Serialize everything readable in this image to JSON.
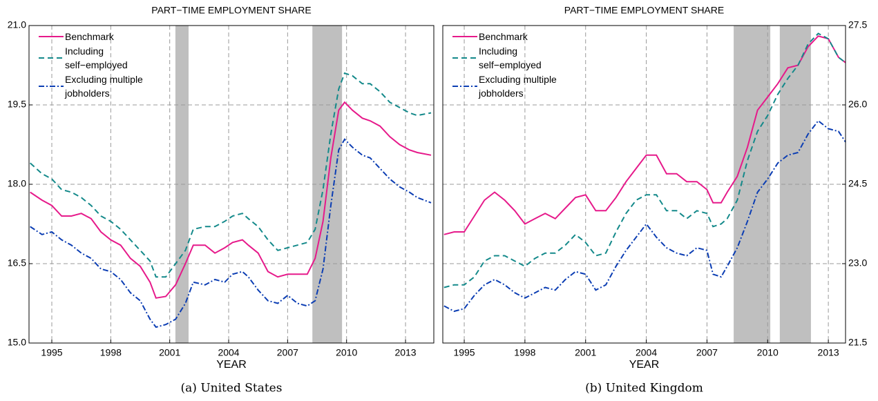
{
  "chart_data": [
    {
      "type": "line",
      "title": "PART−TIME EMPLOYMENT SHARE",
      "xlabel": "YEAR",
      "caption": "(a) United States",
      "y_axis_side": "left",
      "grid": true,
      "xlim": [
        1993.84,
        2014.44
      ],
      "xticks": [
        1995,
        1998,
        2001,
        2004,
        2007,
        2010,
        2013
      ],
      "ylim": [
        15,
        21
      ],
      "yticks": [
        {
          "value": 15,
          "label": "15.0"
        },
        16.5,
        {
          "value": 18,
          "label": "18.0"
        },
        19.5,
        {
          "value": 21,
          "label": "21.0"
        }
      ],
      "shaded_regions": [
        [
          2001.29,
          2001.96
        ],
        [
          2008.26,
          2009.77
        ]
      ],
      "shade_color": "#bfbfbf",
      "x": [
        1993.9,
        1994.5,
        1995,
        1995.5,
        1996,
        1996.5,
        1997,
        1997.5,
        1998,
        1998.5,
        1999,
        1999.5,
        2000,
        2000.3,
        2000.8,
        2001.3,
        2001.8,
        2002.2,
        2002.8,
        2003.3,
        2003.8,
        2004.2,
        2004.7,
        2005,
        2005.5,
        2006,
        2006.5,
        2007,
        2007.5,
        2008,
        2008.4,
        2008.8,
        2009.2,
        2009.6,
        2009.9,
        2010.3,
        2010.8,
        2011.2,
        2011.7,
        2012.2,
        2012.7,
        2013.2,
        2013.6,
        2014.3
      ],
      "series": [
        {
          "name": "Benchmark",
          "color": "#e6198a",
          "dash": "",
          "values": [
            17.85,
            17.7,
            17.6,
            17.4,
            17.4,
            17.45,
            17.35,
            17.1,
            16.95,
            16.85,
            16.6,
            16.45,
            16.15,
            15.85,
            15.88,
            16.1,
            16.5,
            16.85,
            16.85,
            16.7,
            16.8,
            16.9,
            16.95,
            16.85,
            16.7,
            16.35,
            16.25,
            16.3,
            16.3,
            16.3,
            16.6,
            17.3,
            18.5,
            19.4,
            19.55,
            19.4,
            19.25,
            19.2,
            19.1,
            18.9,
            18.75,
            18.65,
            18.6,
            18.55
          ]
        },
        {
          "name": "Including self−employed",
          "color": "#13898a",
          "dash": "8,5",
          "values": [
            18.4,
            18.2,
            18.1,
            17.9,
            17.85,
            17.75,
            17.6,
            17.4,
            17.3,
            17.15,
            16.95,
            16.75,
            16.55,
            16.25,
            16.25,
            16.5,
            16.75,
            17.15,
            17.2,
            17.2,
            17.3,
            17.4,
            17.45,
            17.35,
            17.2,
            16.95,
            16.75,
            16.8,
            16.85,
            16.9,
            17.15,
            17.9,
            18.95,
            19.8,
            20.1,
            20.05,
            19.9,
            19.9,
            19.75,
            19.55,
            19.45,
            19.35,
            19.3,
            19.35
          ]
        },
        {
          "name": "Excluding multiple jobholders",
          "color": "#0b3db3",
          "dash": "8,3,2,3",
          "values": [
            17.2,
            17.05,
            17.1,
            16.95,
            16.85,
            16.7,
            16.6,
            16.4,
            16.35,
            16.2,
            15.95,
            15.8,
            15.45,
            15.3,
            15.35,
            15.45,
            15.75,
            16.15,
            16.1,
            16.2,
            16.15,
            16.3,
            16.35,
            16.25,
            16.0,
            15.8,
            15.75,
            15.9,
            15.75,
            15.7,
            15.8,
            16.4,
            17.6,
            18.65,
            18.85,
            18.7,
            18.55,
            18.5,
            18.3,
            18.1,
            17.95,
            17.85,
            17.75,
            17.65
          ]
        }
      ]
    },
    {
      "type": "line",
      "title": "PART−TIME EMPLOYMENT SHARE",
      "xlabel": "YEAR",
      "caption": "(b) United Kingdom",
      "y_axis_side": "right",
      "grid": true,
      "xlim": [
        1993.94,
        2013.85
      ],
      "xticks": [
        1995,
        1998,
        2001,
        2004,
        2007,
        2010,
        2013
      ],
      "ylim": [
        21.5,
        27.5
      ],
      "yticks": [
        21.5,
        {
          "value": 23,
          "label": "23.0"
        },
        24.5,
        {
          "value": 26,
          "label": "26.0"
        },
        27.5
      ],
      "shaded_regions": [
        [
          2008.32,
          2010.13
        ],
        [
          2010.6,
          2012.14
        ]
      ],
      "shade_color": "#bfbfbf",
      "x": [
        1994,
        1994.5,
        1995,
        1995.5,
        1996,
        1996.5,
        1997,
        1997.5,
        1998,
        1998.5,
        1999,
        1999.5,
        2000,
        2000.5,
        2001,
        2001.5,
        2002,
        2002.5,
        2003,
        2003.5,
        2004,
        2004.5,
        2005,
        2005.5,
        2006,
        2006.5,
        2007,
        2007.3,
        2007.7,
        2008,
        2008.5,
        2009,
        2009.5,
        2010,
        2010.5,
        2011,
        2011.5,
        2012,
        2012.5,
        2013,
        2013.5,
        2013.85
      ],
      "series": [
        {
          "name": "Benchmark",
          "color": "#e6198a",
          "dash": "",
          "values": [
            23.55,
            23.6,
            23.6,
            23.9,
            24.2,
            24.35,
            24.2,
            24.0,
            23.75,
            23.85,
            23.95,
            23.85,
            24.05,
            24.25,
            24.3,
            24.0,
            24.0,
            24.25,
            24.55,
            24.8,
            25.05,
            25.05,
            24.7,
            24.7,
            24.55,
            24.55,
            24.4,
            24.15,
            24.15,
            24.35,
            24.65,
            25.2,
            25.9,
            26.15,
            26.4,
            26.7,
            26.75,
            27.1,
            27.3,
            27.25,
            26.9,
            26.8
          ]
        },
        {
          "name": "Including self−employed",
          "color": "#13898a",
          "dash": "8,5",
          "values": [
            22.55,
            22.6,
            22.6,
            22.75,
            23.05,
            23.15,
            23.15,
            23.05,
            22.95,
            23.1,
            23.2,
            23.2,
            23.35,
            23.55,
            23.4,
            23.15,
            23.2,
            23.6,
            23.95,
            24.2,
            24.3,
            24.3,
            24.0,
            24.0,
            23.85,
            24.0,
            23.95,
            23.7,
            23.75,
            23.85,
            24.2,
            24.95,
            25.5,
            25.8,
            26.2,
            26.5,
            26.75,
            27.15,
            27.35,
            27.25,
            26.9,
            26.8
          ]
        },
        {
          "name": "Excluding multiple jobholders",
          "color": "#0b3db3",
          "dash": "8,3,2,3",
          "values": [
            22.2,
            22.1,
            22.15,
            22.4,
            22.6,
            22.7,
            22.6,
            22.45,
            22.35,
            22.45,
            22.55,
            22.5,
            22.7,
            22.85,
            22.8,
            22.5,
            22.6,
            22.95,
            23.25,
            23.5,
            23.75,
            23.5,
            23.3,
            23.2,
            23.15,
            23.3,
            23.25,
            22.8,
            22.75,
            22.95,
            23.3,
            23.8,
            24.35,
            24.6,
            24.9,
            25.05,
            25.1,
            25.45,
            25.7,
            25.55,
            25.5,
            25.3
          ]
        }
      ]
    }
  ]
}
